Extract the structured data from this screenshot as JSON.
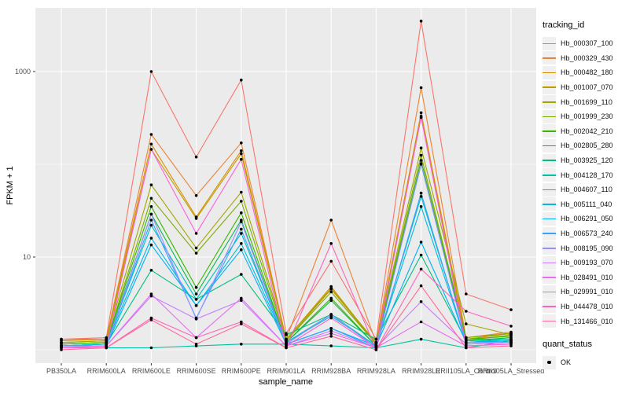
{
  "chart_data": {
    "type": "line",
    "title": "",
    "xlabel": "sample_name",
    "ylabel": "FPKM + 1",
    "y_scale": "log10",
    "ylim": [
      0.75,
      4800
    ],
    "y_ticks": [
      {
        "label": "1000",
        "value": 1000
      },
      {
        "label": "10",
        "value": 10
      }
    ],
    "y_minor": [
      100,
      1
    ],
    "grid": "on",
    "panel_bg": "#EBEBEB",
    "grid_color": "#FFFFFF",
    "point_color": "#000000",
    "tick_label_color": "#4D4D4D",
    "legend_position": "right",
    "categories": [
      "PB350LA",
      "RRIM600LA",
      "RRIM600LE",
      "RRIM600SE",
      "RRIM600PE",
      "RRIM901LA",
      "RRIM928BA",
      "RRIM928LA",
      "RRIM928LE",
      "RRII105LA_Control",
      "RRII105LA_Stressed"
    ],
    "legend": {
      "tracking_title": "tracking_id",
      "quant_title": "quant_status",
      "quant_label": "OK"
    },
    "series": [
      {
        "name": "Hb_000307_100",
        "color": "#F8766D",
        "values": [
          1.3,
          1.35,
          1000,
          120,
          810,
          1.5,
          9,
          1.3,
          3500,
          4.0,
          2.7
        ]
      },
      {
        "name": "Hb_000329_430",
        "color": "#EB8335",
        "values": [
          1.3,
          1.3,
          210,
          46,
          170,
          1.3,
          25,
          1.2,
          670,
          1.35,
          1.55
        ]
      },
      {
        "name": "Hb_000482_180",
        "color": "#D89000",
        "values": [
          1.25,
          1.3,
          165,
          27,
          140,
          1.3,
          4.8,
          1.15,
          360,
          1.3,
          1.5
        ]
      },
      {
        "name": "Hb_001007_070",
        "color": "#C09B00",
        "values": [
          1.2,
          1.25,
          145,
          26,
          130,
          1.25,
          4.5,
          1.15,
          330,
          1.25,
          1.45
        ]
      },
      {
        "name": "Hb_001699_110",
        "color": "#A3A500",
        "values": [
          1.2,
          1.25,
          60,
          12.5,
          50,
          1.3,
          4.6,
          1.2,
          150,
          1.9,
          1.45
        ]
      },
      {
        "name": "Hb_001999_230",
        "color": "#7CAE00",
        "values": [
          1.15,
          1.2,
          43,
          11,
          40,
          1.25,
          4.2,
          1.15,
          125,
          1.35,
          1.5
        ]
      },
      {
        "name": "Hb_002042_210",
        "color": "#39B600",
        "values": [
          1.15,
          1.2,
          35,
          4.7,
          30,
          1.2,
          3.6,
          1.1,
          110,
          1.3,
          1.4
        ]
      },
      {
        "name": "Hb_002805_280",
        "color": "#00BB4E",
        "values": [
          1.1,
          1.15,
          29,
          4.0,
          25,
          1.2,
          3.4,
          1.1,
          100,
          1.25,
          1.35
        ]
      },
      {
        "name": "Hb_003925_120",
        "color": "#00BF7D",
        "values": [
          1.1,
          1.15,
          7.2,
          3.5,
          6.5,
          1.45,
          2.4,
          1.3,
          10.5,
          1.25,
          1.3
        ]
      },
      {
        "name": "Hb_004128_170",
        "color": "#00C1A3",
        "values": [
          1.05,
          1.05,
          1.05,
          1.1,
          1.15,
          1.15,
          1.1,
          1.05,
          1.3,
          1.05,
          1.25
        ]
      },
      {
        "name": "Hb_004607_110",
        "color": "#00BFC4",
        "values": [
          1.1,
          1.15,
          22,
          3.5,
          18,
          1.2,
          2.4,
          1.1,
          45,
          1.2,
          1.3
        ]
      },
      {
        "name": "Hb_005111_040",
        "color": "#00BAE0",
        "values": [
          1.1,
          1.15,
          16,
          3.0,
          14,
          1.2,
          2.3,
          1.1,
          35,
          1.2,
          1.25
        ]
      },
      {
        "name": "Hb_006291_050",
        "color": "#00B0F6",
        "values": [
          1.1,
          1.1,
          13.5,
          3.0,
          12,
          1.15,
          1.7,
          1.1,
          14.5,
          1.2,
          1.25
        ]
      },
      {
        "name": "Hb_006573_240",
        "color": "#35A2FF",
        "values": [
          1.1,
          1.1,
          25,
          2.2,
          20,
          1.15,
          1.7,
          1.05,
          49,
          1.15,
          1.2
        ]
      },
      {
        "name": "Hb_008195_090",
        "color": "#9590FF",
        "values": [
          1.1,
          1.1,
          29,
          2.15,
          24,
          1.15,
          2.4,
          1.05,
          102,
          1.2,
          1.2
        ]
      },
      {
        "name": "Hb_009193_070",
        "color": "#C77CFF",
        "values": [
          1.05,
          1.1,
          3.8,
          2.15,
          3.4,
          1.1,
          1.6,
          1.05,
          3.3,
          1.15,
          1.2
        ]
      },
      {
        "name": "Hb_028491_010",
        "color": "#E76BF3",
        "values": [
          1.05,
          1.1,
          4.0,
          1.35,
          3.6,
          1.1,
          1.5,
          1.05,
          2.0,
          1.1,
          1.15
        ]
      },
      {
        "name": "Hb_029991_010",
        "color": "#FA62DB",
        "values": [
          1.05,
          1.1,
          145,
          18,
          113,
          1.1,
          2.2,
          1.05,
          320,
          1.1,
          1.15
        ]
      },
      {
        "name": "Hb_044478_010",
        "color": "#FF62BC",
        "values": [
          1.05,
          1.05,
          2.2,
          1.35,
          2.0,
          1.05,
          14,
          1.0,
          7.4,
          2.6,
          1.8
        ]
      },
      {
        "name": "Hb_131466_010",
        "color": "#FF6A98",
        "values": [
          1.0,
          1.05,
          2.1,
          1.15,
          1.9,
          1.05,
          1.4,
          1.0,
          4.9,
          1.05,
          1.1
        ]
      }
    ]
  }
}
